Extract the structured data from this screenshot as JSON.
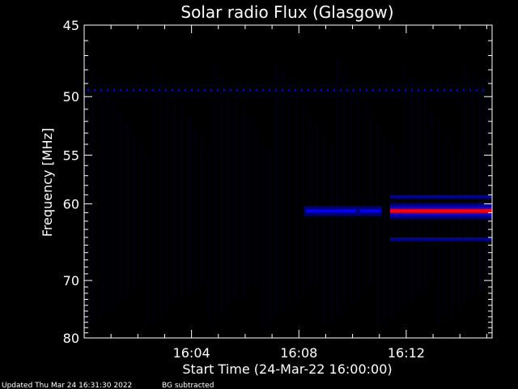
{
  "chart_data": {
    "type": "heatmap",
    "title": "Solar radio Flux (Glasgow)",
    "xlabel": "Start Time (24-Mar-22 16:00:00)",
    "ylabel": "Frequency [MHz]",
    "x_unit": "minutes after 16:00",
    "xlim": [
      0,
      15.2
    ],
    "ylim": [
      45,
      80
    ],
    "y_scale": "reciprocal",
    "x_ticks": [
      {
        "label": "16:04",
        "value": 4
      },
      {
        "label": "16:08",
        "value": 8
      },
      {
        "label": "16:12",
        "value": 12
      }
    ],
    "y_ticks": [
      {
        "label": "45",
        "value": 45
      },
      {
        "label": "50",
        "value": 50
      },
      {
        "label": "55",
        "value": 55
      },
      {
        "label": "60",
        "value": 60
      },
      {
        "label": "70",
        "value": 70
      },
      {
        "label": "80",
        "value": 80
      }
    ],
    "grid": false,
    "colormap": [
      "#000033",
      "#0000ff",
      "#ff0000",
      "#ffff00"
    ],
    "background_color": "#000000",
    "features": [
      {
        "name": "interference line",
        "freq": 49.5,
        "t_start": 0,
        "t_end": 15.2,
        "intensity": "low"
      },
      {
        "name": "burst",
        "freq": 60.8,
        "t_start": 8.2,
        "t_end": 10.2,
        "intensity": "low"
      },
      {
        "name": "burst",
        "freq": 60.8,
        "t_start": 10.2,
        "t_end": 11.1,
        "intensity": "low"
      },
      {
        "name": "emission band",
        "freq": 60.8,
        "t_start": 11.4,
        "t_end": 15.2,
        "intensity": "high"
      },
      {
        "name": "emission band edge",
        "freq": 59.2,
        "t_start": 11.4,
        "t_end": 15.2,
        "intensity": "low"
      },
      {
        "name": "emission band edge",
        "freq": 64.2,
        "t_start": 11.4,
        "t_end": 15.2,
        "intensity": "low"
      }
    ]
  },
  "footer": {
    "updated": "Updated Thu Mar 24 16:31:30 2022",
    "note": "BG subtracted"
  }
}
